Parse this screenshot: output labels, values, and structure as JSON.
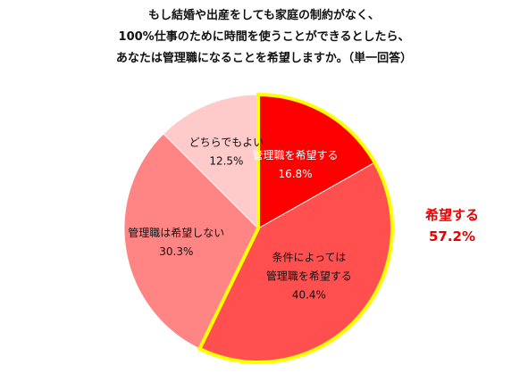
{
  "title_lines": [
    "もし結婚や出産をしても家庭の制約がなく、",
    "100%仕事のために時間を使うことができるとしたら、",
    "あなたは管理職になることを希望しますか。（単一回答）"
  ],
  "chart_data": {
    "type": "pie",
    "slices": [
      {
        "label": [
          "管理職を希望する"
        ],
        "value": 16.8,
        "value_label": "16.8%",
        "color": "#ff0000",
        "text_color": "#ffffff",
        "highlighted": true
      },
      {
        "label": [
          "条件によっては",
          "管理職を希望する"
        ],
        "value": 40.4,
        "value_label": "40.4%",
        "color": "#ff4f4f",
        "text_color": "#111111",
        "highlighted": true
      },
      {
        "label": [
          "管理職は希望しない"
        ],
        "value": 30.3,
        "value_label": "30.3%",
        "color": "#ff8585",
        "text_color": "#111111",
        "highlighted": false
      },
      {
        "label": [
          "どちらでもよい"
        ],
        "value": 12.5,
        "value_label": "12.5%",
        "color": "#ffcaca",
        "text_color": "#111111",
        "highlighted": false
      }
    ],
    "start_angle": "12 o'clock",
    "direction": "clockwise",
    "highlight_outline_color": "#ffff00",
    "callout": {
      "label": "希望する",
      "value": "57.2%",
      "color": "#e60000"
    }
  }
}
